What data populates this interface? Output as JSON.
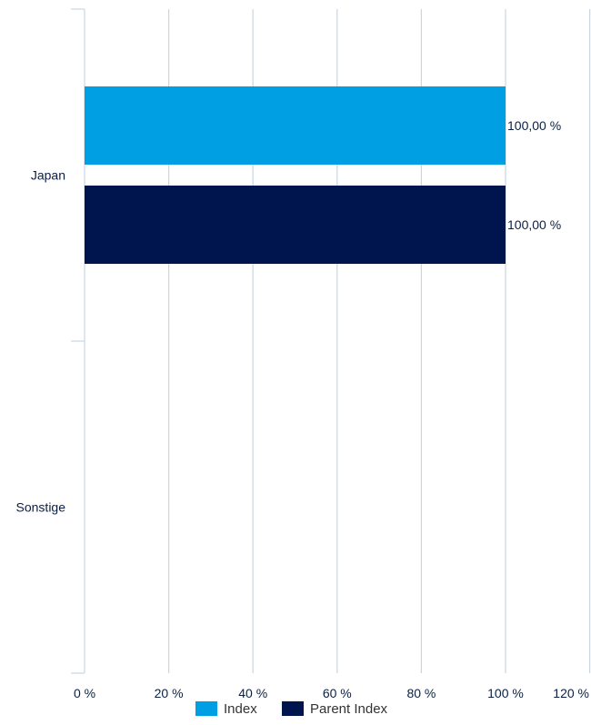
{
  "chart_data": {
    "type": "bar",
    "orientation": "horizontal",
    "categories": [
      "Japan",
      "Sonstige"
    ],
    "series": [
      {
        "name": "Index",
        "color": "#009fe3",
        "values": [
          100,
          null
        ],
        "labels": [
          "100,00 %",
          ""
        ]
      },
      {
        "name": "Parent Index",
        "color": "#00144d",
        "values": [
          100,
          null
        ],
        "labels": [
          "100,00 %",
          ""
        ]
      }
    ],
    "x_ticks": [
      0,
      20,
      40,
      60,
      80,
      100,
      120
    ],
    "x_tick_labels": [
      "0 %",
      "20 %",
      "40 %",
      "60 %",
      "80 %",
      "100 %",
      "120 %"
    ],
    "xlim": [
      0,
      120
    ],
    "grid": true,
    "legend": "bottom",
    "title": "",
    "xlabel": "",
    "ylabel": ""
  }
}
